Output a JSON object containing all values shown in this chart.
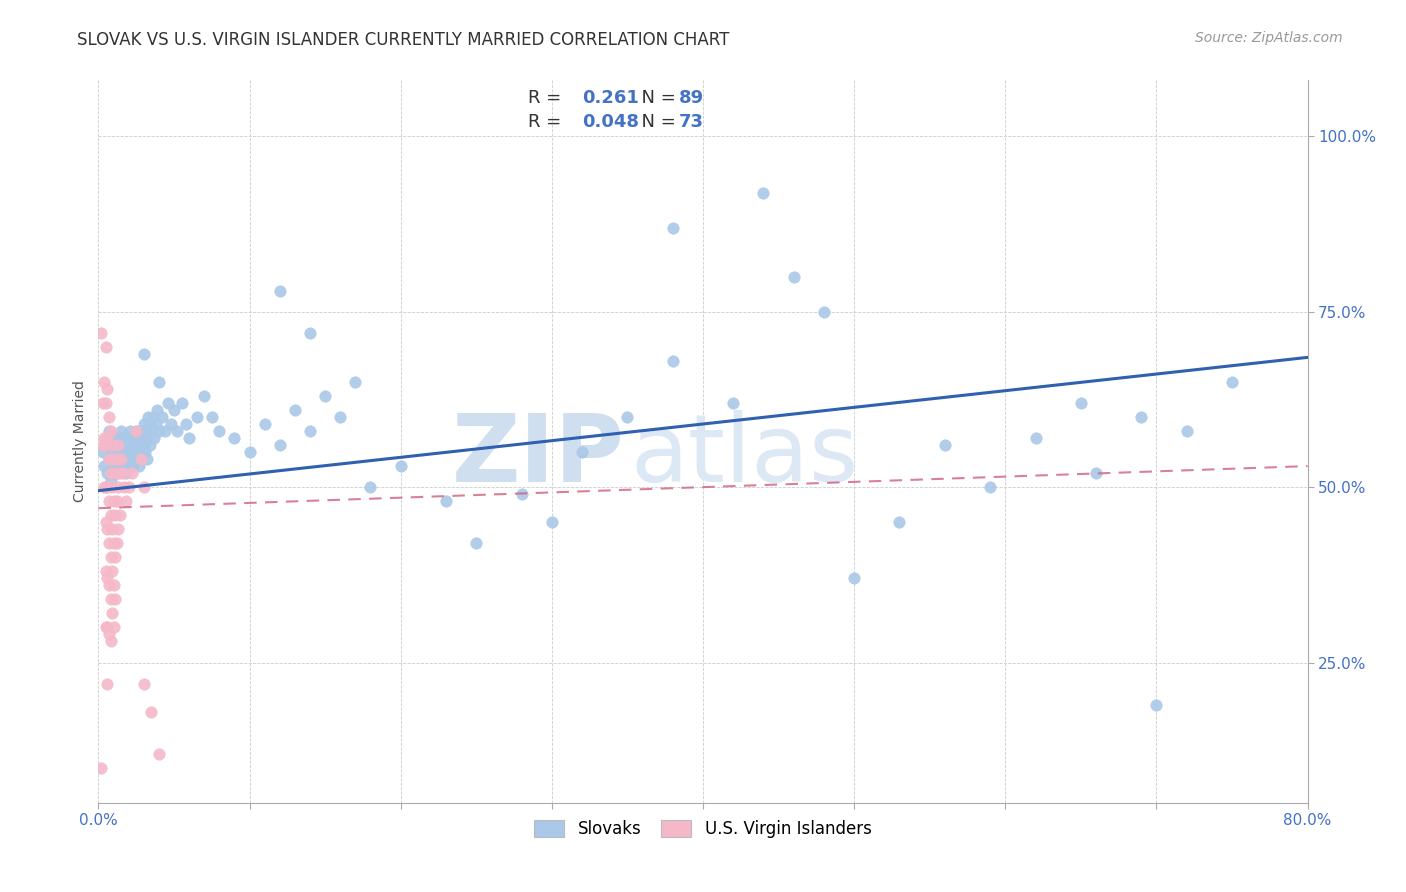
{
  "title": "SLOVAK VS U.S. VIRGIN ISLANDER CURRENTLY MARRIED CORRELATION CHART",
  "source": "Source: ZipAtlas.com",
  "ylabel": "Currently Married",
  "ytick_labels": [
    "25.0%",
    "50.0%",
    "75.0%",
    "100.0%"
  ],
  "ytick_values": [
    0.25,
    0.5,
    0.75,
    1.0
  ],
  "xmin": 0.0,
  "xmax": 0.8,
  "ymin": 0.05,
  "ymax": 1.08,
  "blue_scatter": [
    [
      0.003,
      0.55
    ],
    [
      0.004,
      0.53
    ],
    [
      0.005,
      0.56
    ],
    [
      0.006,
      0.52
    ],
    [
      0.007,
      0.58
    ],
    [
      0.007,
      0.54
    ],
    [
      0.008,
      0.56
    ],
    [
      0.008,
      0.51
    ],
    [
      0.009,
      0.55
    ],
    [
      0.009,
      0.53
    ],
    [
      0.01,
      0.57
    ],
    [
      0.01,
      0.54
    ],
    [
      0.01,
      0.52
    ],
    [
      0.011,
      0.56
    ],
    [
      0.011,
      0.53
    ],
    [
      0.012,
      0.55
    ],
    [
      0.012,
      0.52
    ],
    [
      0.013,
      0.57
    ],
    [
      0.013,
      0.54
    ],
    [
      0.014,
      0.56
    ],
    [
      0.014,
      0.53
    ],
    [
      0.015,
      0.58
    ],
    [
      0.015,
      0.55
    ],
    [
      0.016,
      0.57
    ],
    [
      0.016,
      0.54
    ],
    [
      0.017,
      0.56
    ],
    [
      0.017,
      0.53
    ],
    [
      0.018,
      0.55
    ],
    [
      0.018,
      0.52
    ],
    [
      0.019,
      0.57
    ],
    [
      0.019,
      0.54
    ],
    [
      0.02,
      0.56
    ],
    [
      0.02,
      0.53
    ],
    [
      0.021,
      0.58
    ],
    [
      0.021,
      0.55
    ],
    [
      0.022,
      0.57
    ],
    [
      0.022,
      0.54
    ],
    [
      0.023,
      0.56
    ],
    [
      0.023,
      0.53
    ],
    [
      0.024,
      0.55
    ],
    [
      0.025,
      0.58
    ],
    [
      0.025,
      0.55
    ],
    [
      0.026,
      0.57
    ],
    [
      0.026,
      0.54
    ],
    [
      0.027,
      0.56
    ],
    [
      0.027,
      0.53
    ],
    [
      0.028,
      0.58
    ],
    [
      0.028,
      0.55
    ],
    [
      0.029,
      0.57
    ],
    [
      0.03,
      0.59
    ],
    [
      0.03,
      0.56
    ],
    [
      0.031,
      0.58
    ],
    [
      0.031,
      0.55
    ],
    [
      0.032,
      0.57
    ],
    [
      0.032,
      0.54
    ],
    [
      0.033,
      0.6
    ],
    [
      0.033,
      0.57
    ],
    [
      0.034,
      0.59
    ],
    [
      0.034,
      0.56
    ],
    [
      0.035,
      0.58
    ],
    [
      0.036,
      0.6
    ],
    [
      0.037,
      0.57
    ],
    [
      0.038,
      0.59
    ],
    [
      0.039,
      0.61
    ],
    [
      0.04,
      0.58
    ],
    [
      0.042,
      0.6
    ],
    [
      0.044,
      0.58
    ],
    [
      0.046,
      0.62
    ],
    [
      0.048,
      0.59
    ],
    [
      0.05,
      0.61
    ],
    [
      0.052,
      0.58
    ],
    [
      0.055,
      0.62
    ],
    [
      0.058,
      0.59
    ],
    [
      0.06,
      0.57
    ],
    [
      0.065,
      0.6
    ],
    [
      0.07,
      0.63
    ],
    [
      0.075,
      0.6
    ],
    [
      0.08,
      0.58
    ],
    [
      0.09,
      0.57
    ],
    [
      0.1,
      0.55
    ],
    [
      0.11,
      0.59
    ],
    [
      0.12,
      0.56
    ],
    [
      0.13,
      0.61
    ],
    [
      0.14,
      0.58
    ],
    [
      0.15,
      0.63
    ],
    [
      0.16,
      0.6
    ],
    [
      0.17,
      0.65
    ],
    [
      0.03,
      0.69
    ],
    [
      0.04,
      0.65
    ],
    [
      0.12,
      0.78
    ],
    [
      0.14,
      0.72
    ],
    [
      0.38,
      0.87
    ],
    [
      0.44,
      0.92
    ],
    [
      0.46,
      0.8
    ],
    [
      0.48,
      0.75
    ],
    [
      0.38,
      0.68
    ],
    [
      0.42,
      0.62
    ],
    [
      0.32,
      0.55
    ],
    [
      0.35,
      0.6
    ],
    [
      0.28,
      0.49
    ],
    [
      0.3,
      0.45
    ],
    [
      0.25,
      0.42
    ],
    [
      0.23,
      0.48
    ],
    [
      0.2,
      0.53
    ],
    [
      0.18,
      0.5
    ],
    [
      0.5,
      0.37
    ],
    [
      0.53,
      0.45
    ],
    [
      0.56,
      0.56
    ],
    [
      0.59,
      0.5
    ],
    [
      0.62,
      0.57
    ],
    [
      0.65,
      0.62
    ],
    [
      0.66,
      0.52
    ],
    [
      0.69,
      0.6
    ],
    [
      0.72,
      0.58
    ],
    [
      0.75,
      0.65
    ],
    [
      0.7,
      0.19
    ]
  ],
  "pink_scatter": [
    [
      0.002,
      0.72
    ],
    [
      0.003,
      0.62
    ],
    [
      0.003,
      0.56
    ],
    [
      0.004,
      0.65
    ],
    [
      0.004,
      0.57
    ],
    [
      0.004,
      0.5
    ],
    [
      0.005,
      0.7
    ],
    [
      0.005,
      0.62
    ],
    [
      0.005,
      0.56
    ],
    [
      0.005,
      0.5
    ],
    [
      0.005,
      0.45
    ],
    [
      0.005,
      0.38
    ],
    [
      0.005,
      0.3
    ],
    [
      0.006,
      0.64
    ],
    [
      0.006,
      0.57
    ],
    [
      0.006,
      0.5
    ],
    [
      0.006,
      0.44
    ],
    [
      0.006,
      0.37
    ],
    [
      0.006,
      0.3
    ],
    [
      0.006,
      0.22
    ],
    [
      0.007,
      0.6
    ],
    [
      0.007,
      0.54
    ],
    [
      0.007,
      0.48
    ],
    [
      0.007,
      0.42
    ],
    [
      0.007,
      0.36
    ],
    [
      0.007,
      0.29
    ],
    [
      0.008,
      0.58
    ],
    [
      0.008,
      0.52
    ],
    [
      0.008,
      0.46
    ],
    [
      0.008,
      0.4
    ],
    [
      0.008,
      0.34
    ],
    [
      0.008,
      0.28
    ],
    [
      0.009,
      0.56
    ],
    [
      0.009,
      0.5
    ],
    [
      0.009,
      0.44
    ],
    [
      0.009,
      0.38
    ],
    [
      0.009,
      0.32
    ],
    [
      0.01,
      0.54
    ],
    [
      0.01,
      0.48
    ],
    [
      0.01,
      0.42
    ],
    [
      0.01,
      0.36
    ],
    [
      0.01,
      0.3
    ],
    [
      0.011,
      0.52
    ],
    [
      0.011,
      0.46
    ],
    [
      0.011,
      0.4
    ],
    [
      0.011,
      0.34
    ],
    [
      0.012,
      0.54
    ],
    [
      0.012,
      0.48
    ],
    [
      0.012,
      0.42
    ],
    [
      0.013,
      0.56
    ],
    [
      0.013,
      0.5
    ],
    [
      0.013,
      0.44
    ],
    [
      0.014,
      0.52
    ],
    [
      0.014,
      0.46
    ],
    [
      0.015,
      0.54
    ],
    [
      0.016,
      0.52
    ],
    [
      0.017,
      0.5
    ],
    [
      0.018,
      0.48
    ],
    [
      0.02,
      0.5
    ],
    [
      0.022,
      0.52
    ],
    [
      0.025,
      0.58
    ],
    [
      0.028,
      0.54
    ],
    [
      0.03,
      0.5
    ],
    [
      0.03,
      0.22
    ],
    [
      0.035,
      0.18
    ],
    [
      0.04,
      0.12
    ],
    [
      0.002,
      0.1
    ]
  ],
  "blue_line_x": [
    0.0,
    0.8
  ],
  "blue_line_y": [
    0.495,
    0.685
  ],
  "pink_line_x": [
    0.0,
    0.8
  ],
  "pink_line_y": [
    0.47,
    0.53
  ],
  "scatter_blue_color": "#aac8e8",
  "scatter_pink_color": "#f5b8c8",
  "line_blue_color": "#3060b0",
  "line_pink_color": "#d06080",
  "watermark_color": "#d0dff0",
  "title_fontsize": 12,
  "source_fontsize": 10,
  "axis_label_fontsize": 10,
  "tick_fontsize": 11,
  "legend_r1": "0.261",
  "legend_n1": "89",
  "legend_r2": "0.048",
  "legend_n2": "73",
  "legend_text_color": "#4472C4",
  "legend_label_color": "#333333"
}
